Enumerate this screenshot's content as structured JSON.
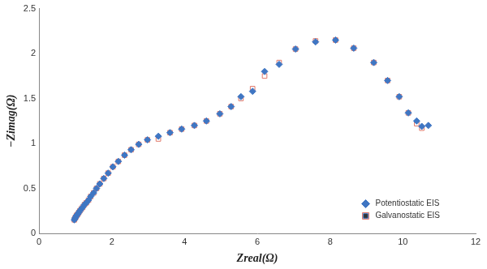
{
  "chart_data": {
    "type": "scatter",
    "x_label": "Zreal(Ω)",
    "y_label": "−Zimag(Ω)",
    "x": [
      0.97,
      0.99,
      1.01,
      1.03,
      1.06,
      1.09,
      1.12,
      1.16,
      1.2,
      1.25,
      1.3,
      1.36,
      1.42,
      1.5,
      1.58,
      1.67,
      1.78,
      1.9,
      2.03,
      2.18,
      2.35,
      2.53,
      2.74,
      2.98,
      3.28,
      3.6,
      3.92,
      4.27,
      4.6,
      4.97,
      5.28,
      5.55,
      5.87,
      6.2,
      6.6,
      7.05,
      7.6,
      8.15,
      8.65,
      9.2,
      9.58,
      9.9,
      10.15,
      10.38,
      10.52,
      10.7
    ],
    "series": [
      {
        "name": "Potentiostatic EIS",
        "color": "#3f76c3",
        "marker": "diamond",
        "values": [
          0.15,
          0.17,
          0.18,
          0.2,
          0.21,
          0.23,
          0.25,
          0.27,
          0.29,
          0.32,
          0.34,
          0.37,
          0.41,
          0.45,
          0.5,
          0.55,
          0.61,
          0.67,
          0.74,
          0.8,
          0.87,
          0.93,
          0.99,
          1.04,
          1.08,
          1.12,
          1.16,
          1.2,
          1.25,
          1.33,
          1.41,
          1.52,
          1.58,
          1.8,
          1.88,
          2.05,
          2.13,
          2.15,
          2.06,
          1.9,
          1.7,
          1.52,
          1.34,
          1.25,
          1.19,
          1.2
        ]
      },
      {
        "name": "Galvanostatic EIS",
        "color": "#e0796b",
        "marker": "open_square",
        "values": [
          0.15,
          0.17,
          0.18,
          0.2,
          0.21,
          0.23,
          0.25,
          0.27,
          0.29,
          0.32,
          0.34,
          0.37,
          0.41,
          0.45,
          0.5,
          0.55,
          0.61,
          0.67,
          0.74,
          0.8,
          0.87,
          0.93,
          0.99,
          1.04,
          1.05,
          1.12,
          1.16,
          1.2,
          1.25,
          1.33,
          1.41,
          1.5,
          1.61,
          1.75,
          1.9,
          2.05,
          2.14,
          2.15,
          2.06,
          1.9,
          1.7,
          1.52,
          1.34,
          1.22,
          1.17,
          null
        ]
      }
    ],
    "xlim": [
      0,
      12
    ],
    "xticks": [
      0,
      2,
      4,
      6,
      8,
      10,
      12
    ],
    "ylim": [
      0,
      2.5
    ],
    "yticks": [
      0,
      0.5,
      1,
      1.5,
      2,
      2.5
    ],
    "grid": false,
    "legend": "lower right"
  }
}
